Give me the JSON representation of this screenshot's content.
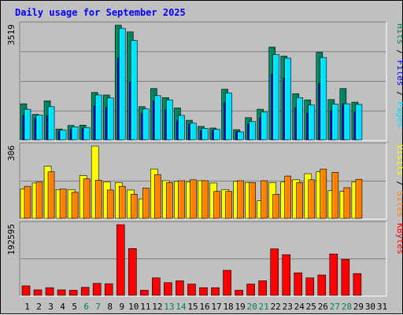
{
  "title": "Daily usage for September 2025",
  "colors": {
    "hits": "#00805c",
    "files": "#0000ff",
    "pages": "#00e0ff",
    "visits": "#ffff00",
    "sites": "#ff8000",
    "kbytes": "#ff0000",
    "weekend_day_label": "#00805c",
    "weekday_label": "#000000",
    "panel_background": "#c0c0c0",
    "grid": "#808080"
  },
  "chart_data": [
    {
      "type": "bar",
      "panel": "hits-files-pages",
      "y_max_label": "3519",
      "ylim": [
        0,
        3519
      ],
      "right_label_parts": [
        {
          "text": "Pages",
          "series": "pages"
        },
        {
          "text": " / ",
          "series": "sep"
        },
        {
          "text": "Files",
          "series": "files"
        },
        {
          "text": " / ",
          "series": "sep"
        },
        {
          "text": "Hits",
          "series": "hits"
        }
      ],
      "series": [
        {
          "name": "Hits",
          "values": [
            1090,
            760,
            1180,
            310,
            420,
            430,
            1440,
            1360,
            3519,
            3310,
            1000,
            1560,
            1280,
            960,
            580,
            390,
            340,
            1540,
            290,
            660,
            920,
            2840,
            2560,
            1400,
            1210,
            2680,
            1220,
            1560,
            1140
          ]
        },
        {
          "name": "Files",
          "values": [
            730,
            640,
            720,
            250,
            300,
            330,
            1020,
            980,
            2500,
            1760,
            780,
            1180,
            900,
            560,
            460,
            260,
            270,
            1120,
            230,
            460,
            660,
            2000,
            1880,
            960,
            800,
            1720,
            870,
            1080,
            830
          ]
        },
        {
          "name": "Pages",
          "values": [
            920,
            740,
            1000,
            280,
            380,
            360,
            1360,
            1270,
            3420,
            3050,
            930,
            1340,
            1210,
            730,
            490,
            330,
            300,
            1420,
            220,
            540,
            840,
            2610,
            2500,
            1280,
            1050,
            2520,
            1080,
            1090,
            1070
          ]
        }
      ]
    },
    {
      "type": "bar",
      "panel": "visits-sites",
      "y_max_label": "306",
      "ylim": [
        0,
        306
      ],
      "right_label_parts": [
        {
          "text": "Sites",
          "series": "sites"
        },
        {
          "text": " / ",
          "series": "sep"
        },
        {
          "text": "Visits",
          "series": "visits"
        }
      ],
      "series": [
        {
          "name": "Visits",
          "values": [
            122,
            148,
            220,
            120,
            120,
            180,
            306,
            152,
            150,
            118,
            80,
            208,
            158,
            155,
            152,
            158,
            148,
            120,
            155,
            150,
            72,
            150,
            152,
            162,
            188,
            196,
            115,
            112,
            152
          ]
        },
        {
          "name": "Sites",
          "values": [
            134,
            152,
            196,
            122,
            108,
            166,
            160,
            118,
            134,
            100,
            126,
            184,
            150,
            158,
            162,
            158,
            112,
            112,
            158,
            150,
            158,
            100,
            178,
            150,
            162,
            208,
            194,
            128,
            164
          ]
        }
      ]
    },
    {
      "type": "bar",
      "panel": "kbytes",
      "y_max_label": "192595",
      "ylim": [
        0,
        192595
      ],
      "right_label_parts": [
        {
          "text": "KBytes",
          "series": "kbytes"
        }
      ],
      "series": [
        {
          "name": "KBytes",
          "values": [
            24000,
            13000,
            19000,
            13000,
            12000,
            20000,
            31000,
            30000,
            192595,
            127000,
            12000,
            46000,
            33000,
            38000,
            29000,
            19000,
            19000,
            67000,
            12000,
            29000,
            38000,
            126000,
            110000,
            60000,
            46000,
            54000,
            112000,
            97000,
            58000
          ]
        }
      ]
    }
  ],
  "x_axis": {
    "labels": [
      "1",
      "2",
      "3",
      "4",
      "5",
      "6",
      "7",
      "8",
      "9",
      "10",
      "11",
      "12",
      "13",
      "14",
      "15",
      "16",
      "17",
      "18",
      "19",
      "20",
      "21",
      "22",
      "23",
      "24",
      "25",
      "26",
      "27",
      "28",
      "29",
      "30",
      "31"
    ],
    "weekend_days": [
      "6",
      "7",
      "13",
      "14",
      "20",
      "21",
      "27",
      "28"
    ]
  }
}
